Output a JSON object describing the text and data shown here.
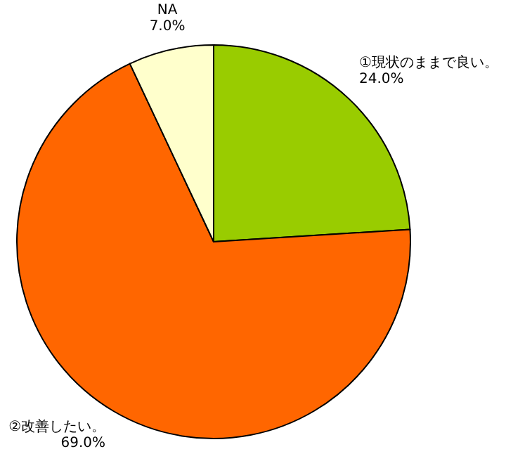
{
  "chart_data": {
    "type": "pie",
    "categories": [
      "①現状のままで良い。",
      "②改善したい。",
      "NA"
    ],
    "values": [
      24.0,
      69.0,
      7.0
    ],
    "colors": [
      "#99cc00",
      "#ff6600",
      "#ffffcc"
    ],
    "value_labels": [
      "24.0%",
      "69.0%",
      "7.0%"
    ]
  }
}
